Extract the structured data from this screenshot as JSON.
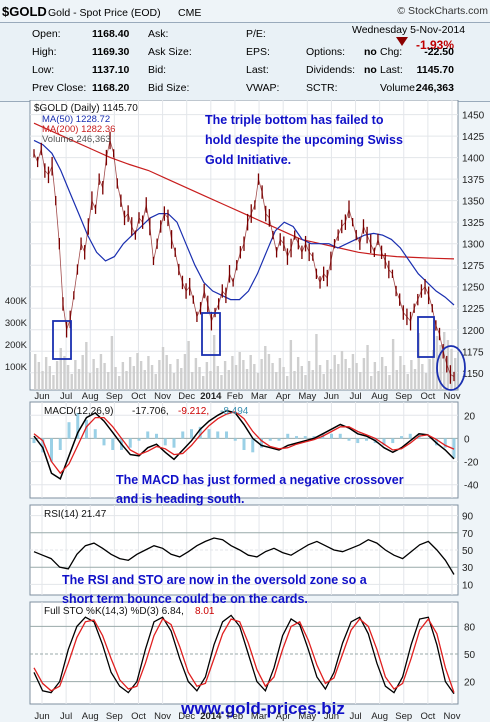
{
  "header": {
    "symbol": "$GOLD",
    "name": "Gold - Spot Price (EOD)",
    "exchange": "CME",
    "source": "© StockCharts.com",
    "date": "Wednesday  5-Nov-2014",
    "change_pct": "-1.93%"
  },
  "quote": {
    "rows": [
      [
        [
          "Open:",
          "1168.40"
        ],
        [
          "Ask:",
          ""
        ],
        [
          "P/E:",
          ""
        ],
        [
          "",
          ""
        ],
        [
          "Chg:",
          "-22.50"
        ]
      ],
      [
        [
          "High:",
          "1169.30"
        ],
        [
          "Ask Size:",
          ""
        ],
        [
          "EPS:",
          ""
        ],
        [
          "Options:",
          "no"
        ],
        [
          "Chg:",
          "-22.50"
        ]
      ],
      [
        [
          "Low:",
          "1137.10"
        ],
        [
          "Bid:",
          ""
        ],
        [
          "Last:",
          ""
        ],
        [
          "Dividends:",
          "no"
        ],
        [
          "Last:",
          "1145.70"
        ]
      ],
      [
        [
          "Prev Close:",
          "1168.20"
        ],
        [
          "Bid Size:",
          ""
        ],
        [
          "VWAP:",
          ""
        ],
        [
          "SCTR:",
          ""
        ],
        [
          "Volume:",
          "246,363"
        ]
      ]
    ]
  },
  "colors": {
    "price": "#7a0000",
    "ma50": "#1a2fb0",
    "ma200": "#c81e1e",
    "volume": "#cfcfcf",
    "annotation": "#1010c8",
    "marker_box": "#1a2fb0",
    "site": "#1010c8"
  },
  "annotations": {
    "price": "The triple bottom has failed to hold despite the upcoming Swiss Gold Initiative.",
    "macd": "The MACD has just formed a negative crossover and is heading south.",
    "rsi": "The RSI and STO are now in the oversold zone so a short term bounce could be on the cards.",
    "site": "www.gold-prices.biz"
  },
  "chart_data": [
    {
      "type": "line",
      "title": "$GOLD (Daily) 1145.70",
      "panel": "price",
      "x_labels": [
        "Jun",
        "Jul",
        "Aug",
        "Sep",
        "Oct",
        "Nov",
        "Dec",
        "2014",
        "Feb",
        "Mar",
        "Apr",
        "May",
        "Jun",
        "Jul",
        "Aug",
        "Sep",
        "Oct",
        "Nov"
      ],
      "ylim": [
        1130,
        1460
      ],
      "y_ticks": [
        1150,
        1175,
        1200,
        1225,
        1250,
        1275,
        1300,
        1325,
        1350,
        1375,
        1400,
        1425,
        1450
      ],
      "volume_ticks": [
        "400K",
        "300K",
        "200K",
        "100K"
      ],
      "series": [
        {
          "name": "$GOLD (Daily) 1145.70",
          "style": "price bars",
          "values": [
            1405,
            1395,
            1410,
            1385,
            1380,
            1390,
            1350,
            1300,
            1230,
            1200,
            1212,
            1240,
            1270,
            1300,
            1290,
            1320,
            1350,
            1340,
            1375,
            1365,
            1400,
            1420,
            1405,
            1370,
            1350,
            1330,
            1335,
            1320,
            1310,
            1330,
            1325,
            1345,
            1320,
            1280,
            1300,
            1320,
            1335,
            1330,
            1305,
            1290,
            1270,
            1255,
            1245,
            1250,
            1235,
            1215,
            1225,
            1245,
            1230,
            1210,
            1220,
            1230,
            1245,
            1240,
            1265,
            1255,
            1275,
            1290,
            1300,
            1325,
            1335,
            1345,
            1375,
            1360,
            1335,
            1330,
            1310,
            1290,
            1305,
            1300,
            1285,
            1295,
            1310,
            1300,
            1290,
            1300,
            1290,
            1285,
            1265,
            1255,
            1265,
            1260,
            1280,
            1300,
            1310,
            1320,
            1325,
            1340,
            1325,
            1310,
            1300,
            1320,
            1310,
            1300,
            1290,
            1305,
            1290,
            1280,
            1270,
            1265,
            1245,
            1235,
            1220,
            1215,
            1210,
            1225,
            1235,
            1245,
            1250,
            1240,
            1225,
            1205,
            1195,
            1175,
            1160,
            1148,
            1145.7
          ]
        },
        {
          "name": "MA(50) 1228.72",
          "values": [
            1420,
            1415,
            1405,
            1385,
            1360,
            1335,
            1310,
            1290,
            1280,
            1285,
            1300,
            1310,
            1320,
            1330,
            1335,
            1335,
            1325,
            1300,
            1275,
            1255,
            1245,
            1240,
            1235,
            1235,
            1245,
            1265,
            1290,
            1315,
            1325,
            1320,
            1305,
            1300,
            1300,
            1300,
            1295,
            1300,
            1305,
            1310,
            1312,
            1310,
            1305,
            1295,
            1280,
            1265,
            1255,
            1245,
            1238,
            1228.72
          ]
        },
        {
          "name": "MA(200) 1282.36",
          "values": [
            1440,
            1430,
            1420,
            1410,
            1400,
            1392,
            1385,
            1375,
            1365,
            1355,
            1345,
            1335,
            1325,
            1315,
            1305,
            1300,
            1295,
            1290,
            1287,
            1285,
            1284,
            1283,
            1282.36
          ]
        },
        {
          "name": "Volume 246,363",
          "style": "bars"
        }
      ]
    },
    {
      "type": "line",
      "title": "MACD(12,26,9) -17.706, -9.212, -8.494",
      "panel": "macd",
      "ylim": [
        -48,
        28
      ],
      "y_ticks": [
        20,
        0,
        -20,
        -40
      ],
      "series": [
        {
          "name": "MACD(12,26,9)",
          "values": [
            2,
            -8,
            -30,
            -35,
            -15,
            5,
            18,
            22,
            15,
            5,
            -5,
            -14,
            -15,
            -8,
            -5,
            -12,
            -18,
            -10,
            -2,
            8,
            15,
            20,
            24,
            22,
            12,
            0,
            -6,
            -8,
            -10,
            -6,
            -4,
            -2,
            0,
            4,
            8,
            12,
            9,
            4,
            2,
            -2,
            -8,
            -12,
            -8,
            -2,
            4,
            3,
            -4,
            -10,
            -17.706
          ]
        },
        {
          "name": "signal",
          "values": [
            4,
            -2,
            -20,
            -30,
            -22,
            -6,
            10,
            18,
            18,
            10,
            0,
            -10,
            -14,
            -11,
            -7,
            -9,
            -14,
            -13,
            -6,
            3,
            11,
            17,
            21,
            23,
            17,
            6,
            -2,
            -7,
            -9,
            -8,
            -5,
            -3,
            -1,
            2,
            6,
            10,
            10,
            6,
            3,
            0,
            -5,
            -10,
            -9,
            -4,
            2,
            3,
            -1,
            -6,
            -9.212
          ]
        },
        {
          "name": "histogram",
          "style": "bars",
          "last": -8.494
        }
      ]
    },
    {
      "type": "line",
      "title": "RSI(14) 21.47",
      "panel": "rsi",
      "ylim": [
        0,
        100
      ],
      "y_ticks": [
        90,
        70,
        50,
        30,
        10
      ],
      "series": [
        {
          "name": "RSI(14)",
          "values": [
            48,
            44,
            40,
            30,
            28,
            45,
            55,
            58,
            52,
            45,
            40,
            38,
            45,
            50,
            55,
            52,
            45,
            42,
            48,
            55,
            60,
            64,
            62,
            55,
            50,
            44,
            42,
            48,
            52,
            47,
            44,
            50,
            56,
            60,
            55,
            50,
            48,
            52,
            56,
            62,
            58,
            50,
            44,
            40,
            48,
            56,
            60,
            50,
            38,
            21.47
          ]
        }
      ]
    },
    {
      "type": "line",
      "title": "Full STO %K(14,3) %D(3) 6.84, 8.01",
      "panel": "sto",
      "ylim": [
        0,
        100
      ],
      "y_ticks": [
        80,
        50,
        20
      ],
      "series": [
        {
          "name": "%K(14,3)",
          "values": [
            30,
            10,
            8,
            20,
            55,
            80,
            90,
            85,
            60,
            30,
            15,
            8,
            20,
            55,
            85,
            90,
            75,
            45,
            20,
            10,
            25,
            60,
            85,
            92,
            80,
            50,
            20,
            10,
            35,
            70,
            88,
            82,
            55,
            25,
            12,
            30,
            62,
            85,
            90,
            72,
            40,
            15,
            8,
            25,
            60,
            88,
            90,
            60,
            20,
            6.84
          ]
        },
        {
          "name": "%D(3)",
          "values": [
            35,
            18,
            10,
            15,
            40,
            68,
            85,
            87,
            70,
            45,
            22,
            12,
            15,
            40,
            70,
            88,
            82,
            58,
            30,
            15,
            18,
            45,
            72,
            88,
            85,
            62,
            33,
            15,
            25,
            55,
            80,
            85,
            65,
            38,
            18,
            24,
            50,
            76,
            88,
            80,
            55,
            25,
            12,
            18,
            45,
            76,
            88,
            72,
            35,
            8.01
          ]
        }
      ]
    }
  ]
}
